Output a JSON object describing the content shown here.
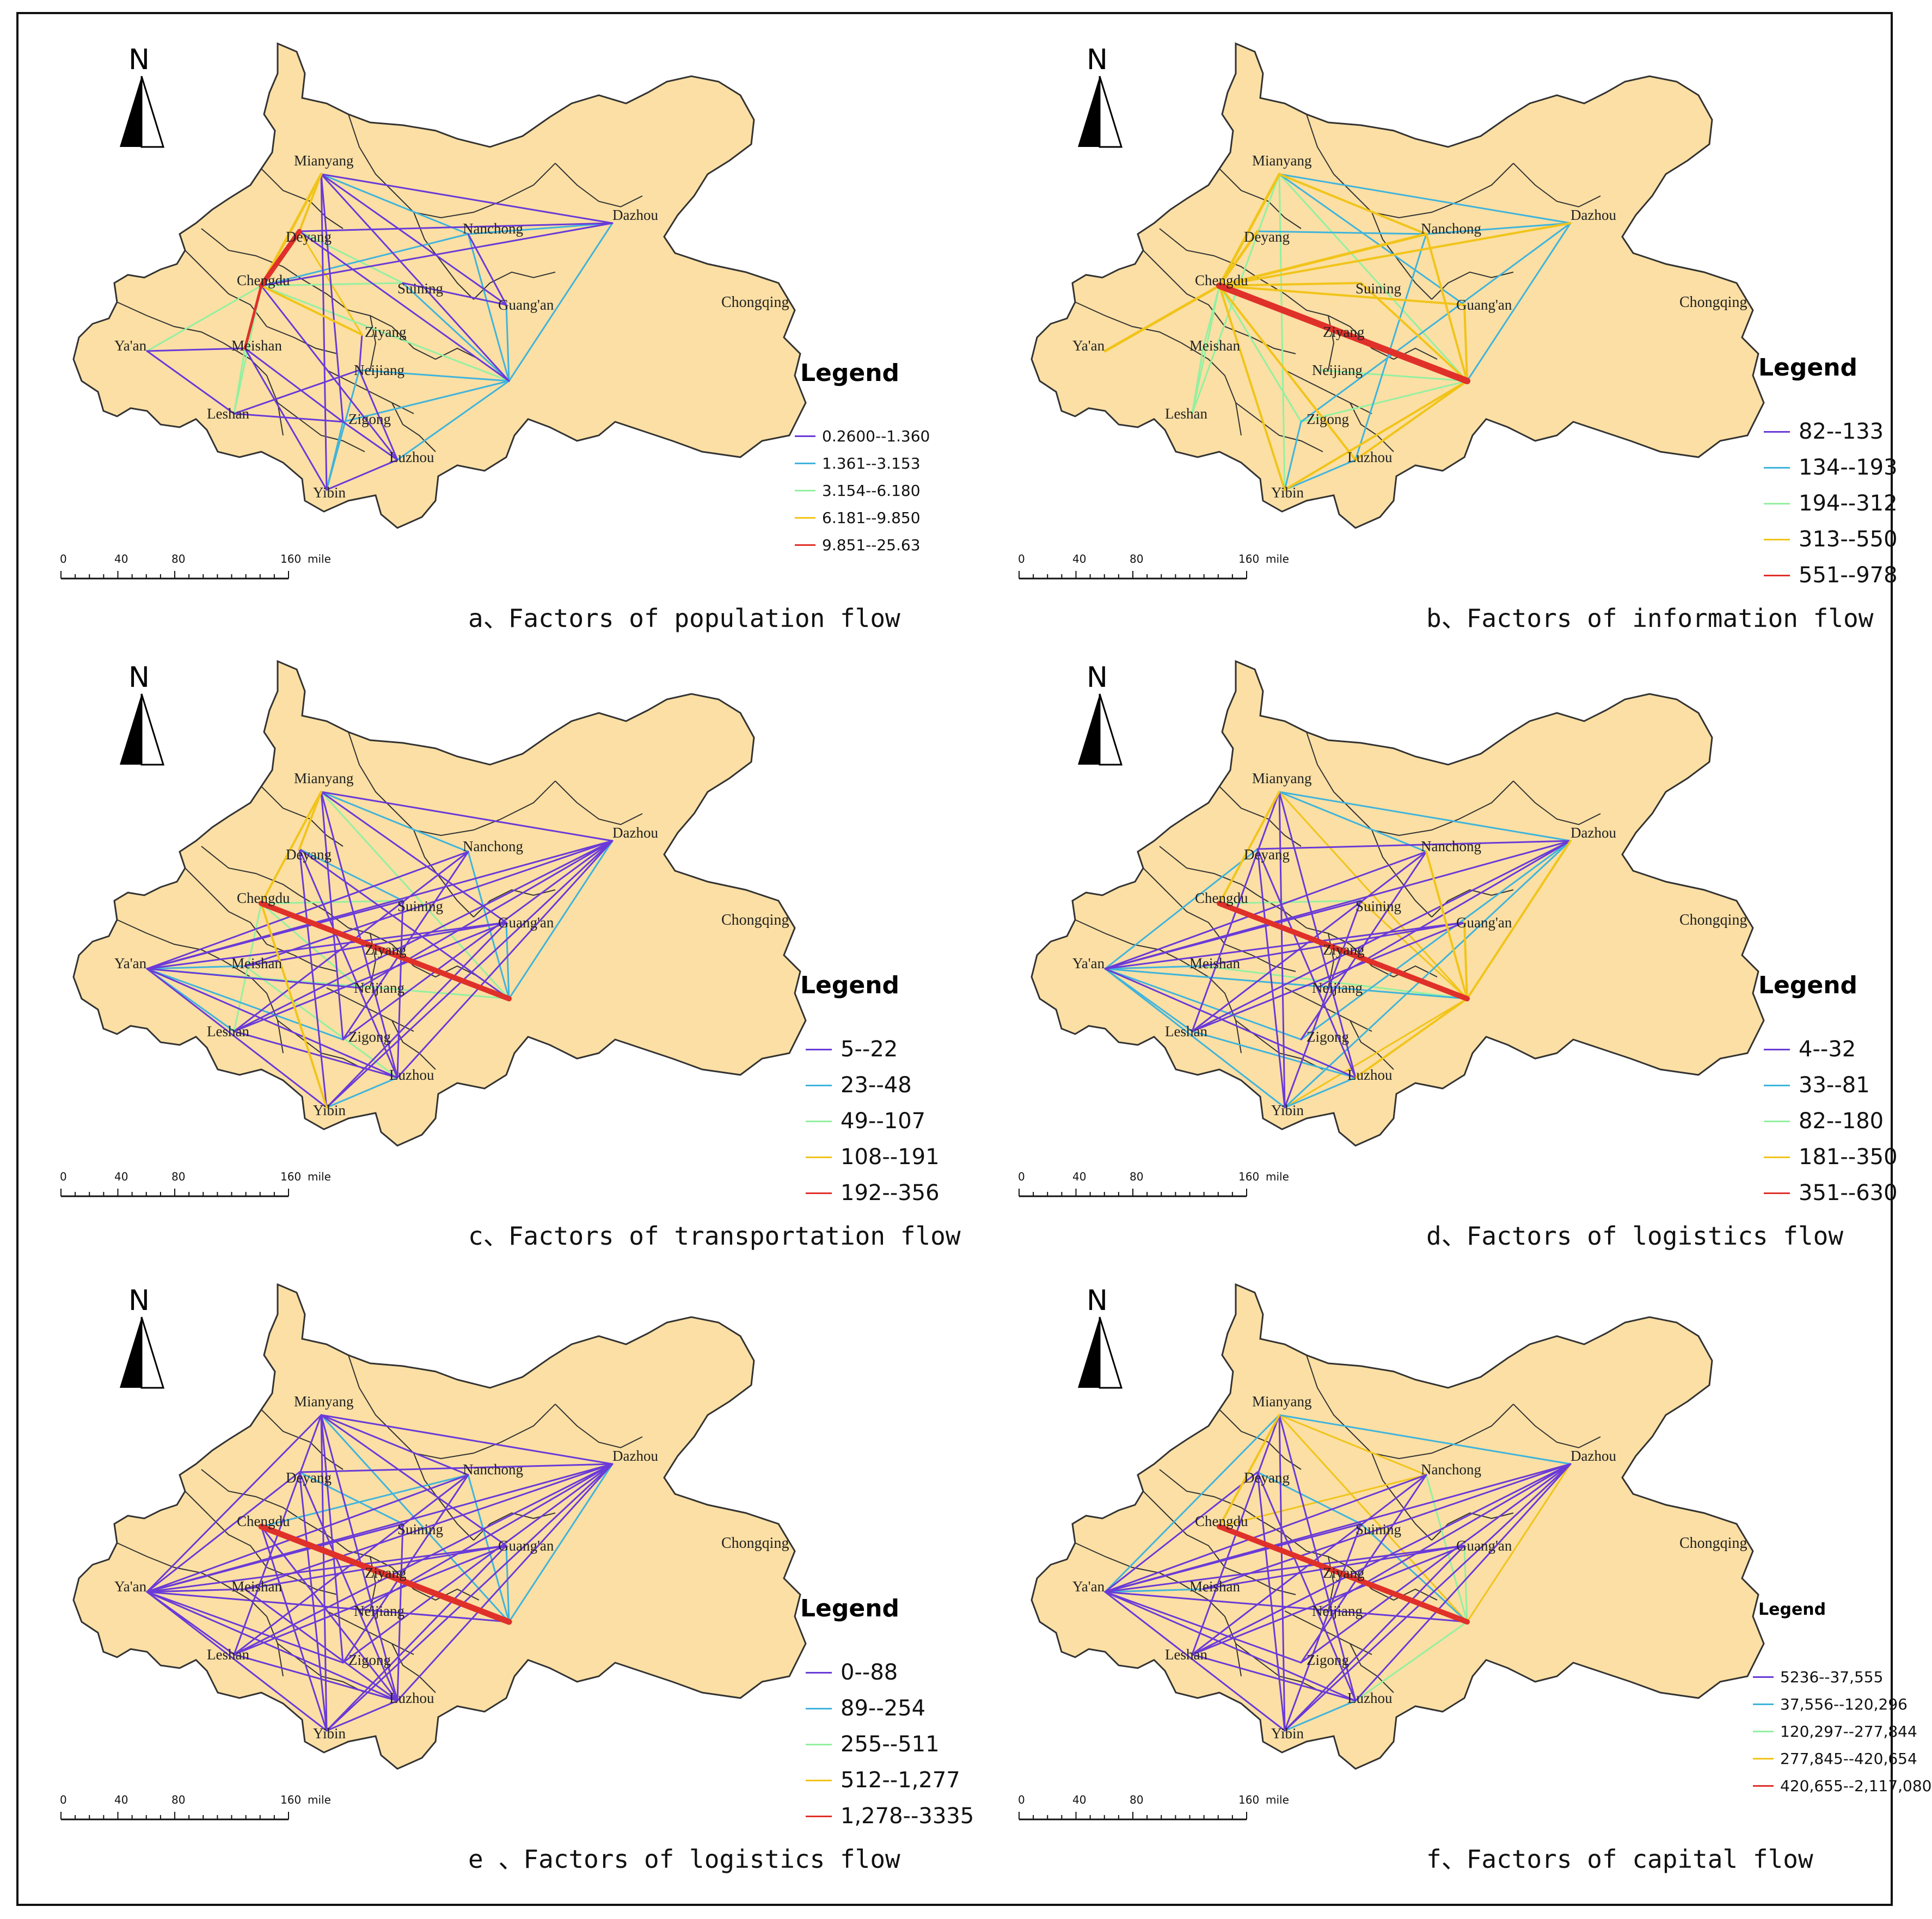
{
  "palette": {
    "map_fill": "#fbdfa4",
    "map_stroke": "#333333",
    "violet": "#6a3ad8",
    "cyan": "#3fb4dc",
    "green": "#93f0a1",
    "yellow": "#f1c419",
    "red": "#e0302a"
  },
  "north_label": "N",
  "legend_title": "Legend",
  "scale": {
    "ticks": [
      "0",
      "40",
      "80",
      "160"
    ],
    "unit": "mile"
  },
  "cities": [
    "Mianyang",
    "Deyang",
    "Chengdu",
    "Nanchong",
    "Dazhou",
    "Suining",
    "Guang'an",
    "Ya'an",
    "Meishan",
    "Ziyang",
    "Neijiang",
    "Leshan",
    "Zigong",
    "Luzhou",
    "Yibin",
    "Chongqing"
  ],
  "panels": [
    {
      "id": "a",
      "caption": "a、Factors of population flow",
      "legend_size": "small",
      "legend": [
        {
          "label": "0.2600--1.360",
          "color": "violet"
        },
        {
          "label": "1.361--3.153",
          "color": "cyan"
        },
        {
          "label": "3.154--6.180",
          "color": "green"
        },
        {
          "label": "6.181--9.850",
          "color": "yellow"
        },
        {
          "label": "9.851--25.63",
          "color": "red"
        }
      ]
    },
    {
      "id": "b",
      "caption": "b、Factors of information flow",
      "legend_size": "big",
      "legend": [
        {
          "label": "82--133",
          "color": "violet"
        },
        {
          "label": "134--193",
          "color": "cyan"
        },
        {
          "label": "194--312",
          "color": "green"
        },
        {
          "label": "313--550",
          "color": "yellow"
        },
        {
          "label": "551--978",
          "color": "red"
        }
      ]
    },
    {
      "id": "c",
      "caption": "c、Factors of transportation flow",
      "legend_size": "big",
      "legend": [
        {
          "label": "5--22",
          "color": "violet"
        },
        {
          "label": "23--48",
          "color": "cyan"
        },
        {
          "label": "49--107",
          "color": "green"
        },
        {
          "label": "108--191",
          "color": "yellow"
        },
        {
          "label": "192--356",
          "color": "red"
        }
      ]
    },
    {
      "id": "d",
      "caption": "d、Factors of logistics flow",
      "legend_size": "big",
      "legend": [
        {
          "label": "4--32",
          "color": "violet"
        },
        {
          "label": "33--81",
          "color": "cyan"
        },
        {
          "label": "82--180",
          "color": "green"
        },
        {
          "label": "181--350",
          "color": "yellow"
        },
        {
          "label": "351--630",
          "color": "red"
        }
      ]
    },
    {
      "id": "e",
      "caption": "e 、Factors of logistics flow",
      "legend_size": "big",
      "legend": [
        {
          "label": "0--88",
          "color": "violet"
        },
        {
          "label": "89--254",
          "color": "cyan"
        },
        {
          "label": "255--511",
          "color": "green"
        },
        {
          "label": "512--1,277",
          "color": "yellow"
        },
        {
          "label": "1,278--3335",
          "color": "red"
        }
      ]
    },
    {
      "id": "f",
      "caption": "f、Factors of capital flow",
      "legend_size": "small",
      "legend_title_size": "small",
      "legend": [
        {
          "label": "5236--37,555",
          "color": "violet"
        },
        {
          "label": "37,556--120,296",
          "color": "cyan"
        },
        {
          "label": "120,297--277,844",
          "color": "green"
        },
        {
          "label": "277,845--420,654",
          "color": "yellow"
        },
        {
          "label": "420,655--2,117,080",
          "color": "red"
        }
      ]
    }
  ]
}
